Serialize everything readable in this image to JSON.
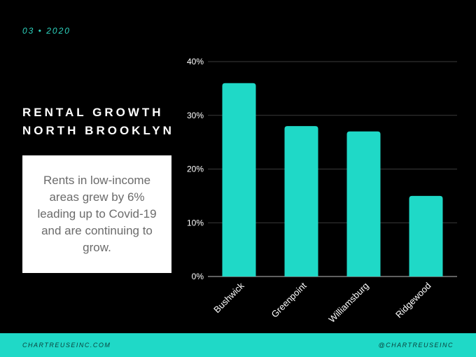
{
  "date_label": "03 • 2020",
  "title_lines": [
    "RENTAL GROWTH",
    "NORTH BROOKLYN"
  ],
  "note_text": "Rents in low-income areas grew by 6% leading up to Covid-19 and are continuing to grow.",
  "footer": {
    "left": "CHARTREUSEINC.COM",
    "right": "@CHARTREUSEINC"
  },
  "colors": {
    "background": "#000000",
    "accent": "#1fd9c7",
    "text": "#ffffff",
    "grid": "#3a3a3a"
  },
  "chart_data": {
    "type": "bar",
    "categories": [
      "Bushwick",
      "Greenpoint",
      "Williamsburg",
      "Ridgewood"
    ],
    "values": [
      36,
      28,
      27,
      15
    ],
    "ylim": [
      0,
      40
    ],
    "yticks": [
      "0%",
      "10%",
      "20%",
      "30%",
      "40%"
    ],
    "grid": true,
    "ylabel": "",
    "xlabel": ""
  }
}
